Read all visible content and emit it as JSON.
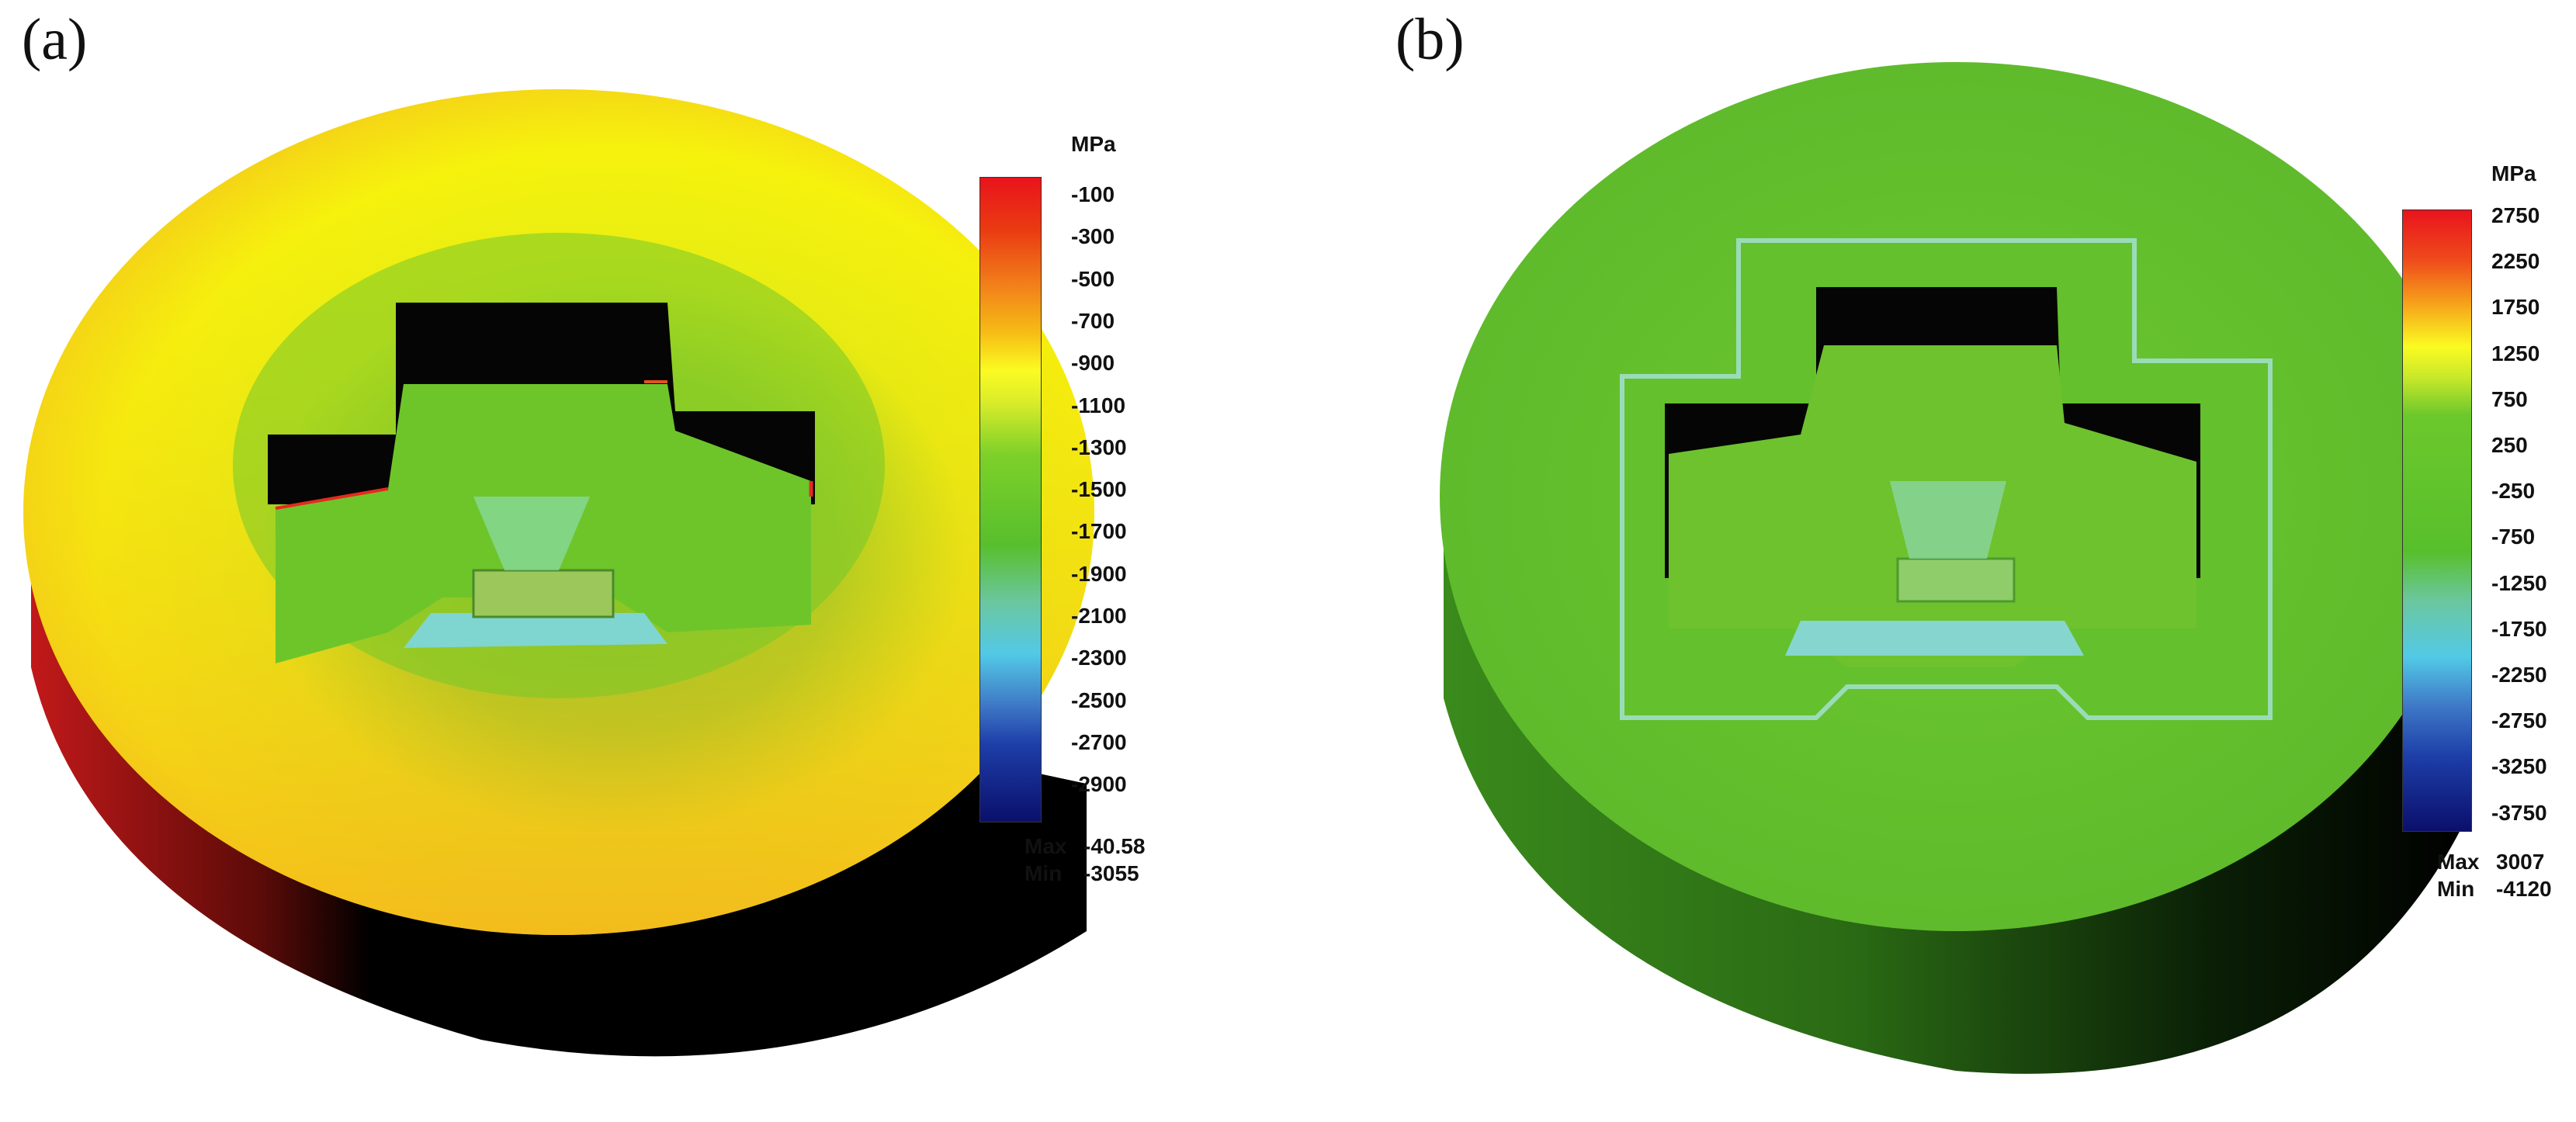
{
  "panels": [
    {
      "label": "(a)",
      "unit": "MPa",
      "ticks": [
        "-100",
        "-300",
        "-500",
        "-700",
        "-900",
        "-1100",
        "-1300",
        "-1500",
        "-1700",
        "-1900",
        "-2100",
        "-2300",
        "-2500",
        "-2700",
        "-2900"
      ],
      "max_label": "Max",
      "max_value": "-40.58",
      "min_label": "Min",
      "min_value": "-3055"
    },
    {
      "label": "(b)",
      "unit": "MPa",
      "ticks": [
        "2750",
        "2250",
        "1750",
        "1250",
        "750",
        "250",
        "-250",
        "-750",
        "-1250",
        "-1750",
        "-2250",
        "-2750",
        "-3250",
        "-3750"
      ],
      "max_label": "Max",
      "max_value": "3007",
      "min_label": "Min",
      "min_value": "-4120"
    }
  ],
  "colors": {
    "red": "#e8141c",
    "orange": "#f7a21b",
    "yellow": "#f4f20a",
    "green": "#5cbf2a",
    "cyan": "#52c9e6",
    "blue": "#1d3ea8",
    "navy": "#0b0f6b"
  }
}
